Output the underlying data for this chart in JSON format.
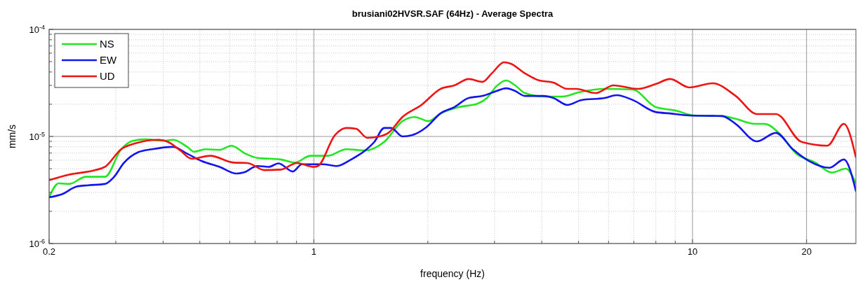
{
  "chart_data": {
    "type": "line",
    "title": "brusiani02HVSR.SAF (64Hz) - Average Spectra",
    "xlabel": "frequency (Hz)",
    "ylabel": "mm/s",
    "log": "xy",
    "grid": true,
    "legend": "top left",
    "line_style": "solid",
    "xlim": [
      0.2,
      27
    ],
    "xticks": [
      0.2,
      1,
      10,
      20
    ],
    "ylim": [
      1e-06,
      0.0001
    ],
    "yticks": [
      {
        "value": 1e-06,
        "label": "10$^{-6}$"
      },
      {
        "value": 1e-05,
        "label": "10$^{-5}$"
      },
      {
        "value": 0.0001,
        "label": "10$^{-4}$"
      }
    ],
    "series": [
      {
        "name": "NS",
        "color": "#22e622",
        "x": [
          0.2,
          0.212,
          0.226,
          0.25,
          0.281,
          0.31,
          0.333,
          0.358,
          0.4,
          0.425,
          0.463,
          0.483,
          0.517,
          0.564,
          0.606,
          0.66,
          0.71,
          0.818,
          0.891,
          0.98,
          1.09,
          1.218,
          1.367,
          1.534,
          1.714,
          1.845,
          2.01,
          2.16,
          2.415,
          2.71,
          2.865,
          3.04,
          3.22,
          3.4,
          3.61,
          4.04,
          4.53,
          5.0,
          5.86,
          6.95,
          8.0,
          8.99,
          10.1,
          11.97,
          13.0,
          14.6,
          15.5,
          16.9,
          18.8,
          21.1,
          23.3,
          25.4,
          27
        ],
        "values": [
          2.7e-06,
          3.65e-06,
          3.6e-06,
          4.2e-06,
          4.2e-06,
          7.6e-06,
          9.1e-06,
          9.4e-06,
          9.1e-06,
          9.3e-06,
          8e-06,
          7.2e-06,
          7.6e-06,
          7.5e-06,
          8.2e-06,
          6.9e-06,
          6.3e-06,
          6.1e-06,
          5.7e-06,
          6.6e-06,
          6.6e-06,
          7.6e-06,
          7.4e-06,
          8.9e-06,
          1.39e-05,
          1.52e-05,
          1.39e-05,
          1.64e-05,
          1.88e-05,
          2.03e-05,
          2.29e-05,
          2.96e-05,
          3.33e-05,
          3e-05,
          2.54e-05,
          2.36e-05,
          2.36e-05,
          2.58e-05,
          2.78e-05,
          2.74e-05,
          1.88e-05,
          1.75e-05,
          1.57e-05,
          1.55e-05,
          1.46e-05,
          1.31e-05,
          1.31e-05,
          1.08e-05,
          6.9e-06,
          5.7e-06,
          4.6e-06,
          5e-06,
          3.65e-06
        ]
      },
      {
        "name": "EW",
        "color": "#1414ee",
        "x": [
          0.2,
          0.217,
          0.236,
          0.254,
          0.281,
          0.297,
          0.315,
          0.343,
          0.374,
          0.425,
          0.463,
          0.505,
          0.564,
          0.625,
          0.652,
          0.71,
          0.76,
          0.807,
          0.88,
          0.93,
          1.057,
          1.152,
          1.255,
          1.367,
          1.445,
          1.534,
          1.6,
          1.714,
          1.82,
          1.983,
          2.16,
          2.35,
          2.564,
          2.79,
          3.04,
          3.22,
          3.4,
          3.61,
          4.04,
          4.29,
          4.67,
          5.09,
          5.86,
          6.3,
          6.95,
          8.0,
          8.73,
          9.8,
          11.97,
          13.0,
          14.8,
          16.6,
          18.4,
          20.3,
          23.0,
          25.1,
          27
        ],
        "values": [
          2.7e-06,
          2.9e-06,
          3.4e-06,
          3.5e-06,
          3.6e-06,
          4.2e-06,
          5.65e-06,
          7.1e-06,
          7.6e-06,
          8e-06,
          6.9e-06,
          5.9e-06,
          5.2e-06,
          4.5e-06,
          4.6e-06,
          5.3e-06,
          5.2e-06,
          5.6e-06,
          4.7e-06,
          5.5e-06,
          5.5e-06,
          5.3e-06,
          6.1e-06,
          7.4e-06,
          8.9e-06,
          1.2e-05,
          1.2e-05,
          1e-05,
          1.03e-05,
          1.22e-05,
          1.64e-05,
          1.88e-05,
          2.29e-05,
          2.39e-05,
          2.66e-05,
          2.82e-05,
          2.66e-05,
          2.39e-05,
          2.39e-05,
          2.29e-05,
          1.97e-05,
          2.19e-05,
          2.29e-05,
          2.43e-05,
          2.19e-05,
          1.69e-05,
          1.64e-05,
          1.57e-05,
          1.55e-05,
          1.31e-05,
          9e-06,
          1.08e-05,
          7.6e-06,
          5.9e-06,
          5.1e-06,
          6.1e-06,
          3.1e-06
        ]
      },
      {
        "name": "UD",
        "color": "#ee1414",
        "x": [
          0.2,
          0.226,
          0.265,
          0.281,
          0.31,
          0.337,
          0.39,
          0.412,
          0.444,
          0.475,
          0.533,
          0.614,
          0.668,
          0.741,
          0.818,
          0.902,
          1.0,
          1.026,
          1.137,
          1.218,
          1.293,
          1.384,
          1.489,
          1.574,
          1.714,
          1.924,
          2.16,
          2.35,
          2.564,
          2.79,
          2.95,
          3.18,
          3.31,
          3.61,
          3.94,
          4.29,
          4.67,
          4.93,
          5.54,
          6.19,
          7.16,
          8.0,
          8.73,
          9.8,
          11.3,
          13.0,
          14.8,
          16.6,
          19.4,
          22.7,
          25.1,
          27
        ],
        "values": [
          3.9e-06,
          4.4e-06,
          4.85e-06,
          5.2e-06,
          7.6e-06,
          8.6e-06,
          9.3e-06,
          8.9e-06,
          7.4e-06,
          6.2e-06,
          6.6e-06,
          5.7e-06,
          5.65e-06,
          4.85e-06,
          4.9e-06,
          5.65e-06,
          5.2e-06,
          5.3e-06,
          1.03e-05,
          1.2e-05,
          1.18e-05,
          9.7e-06,
          1e-05,
          1.08e-05,
          1.52e-05,
          1.97e-05,
          2.78e-05,
          3e-05,
          3.44e-05,
          3.24e-05,
          3.88e-05,
          4.93e-05,
          4.79e-05,
          3.88e-05,
          3.33e-05,
          3.19e-05,
          2.78e-05,
          2.78e-05,
          2.54e-05,
          3e-05,
          2.78e-05,
          3.09e-05,
          3.44e-05,
          2.87e-05,
          3.14e-05,
          2.39e-05,
          1.62e-05,
          1.62e-05,
          8.9e-06,
          8.2e-06,
          1.31e-05,
          6.4e-06
        ]
      }
    ]
  }
}
